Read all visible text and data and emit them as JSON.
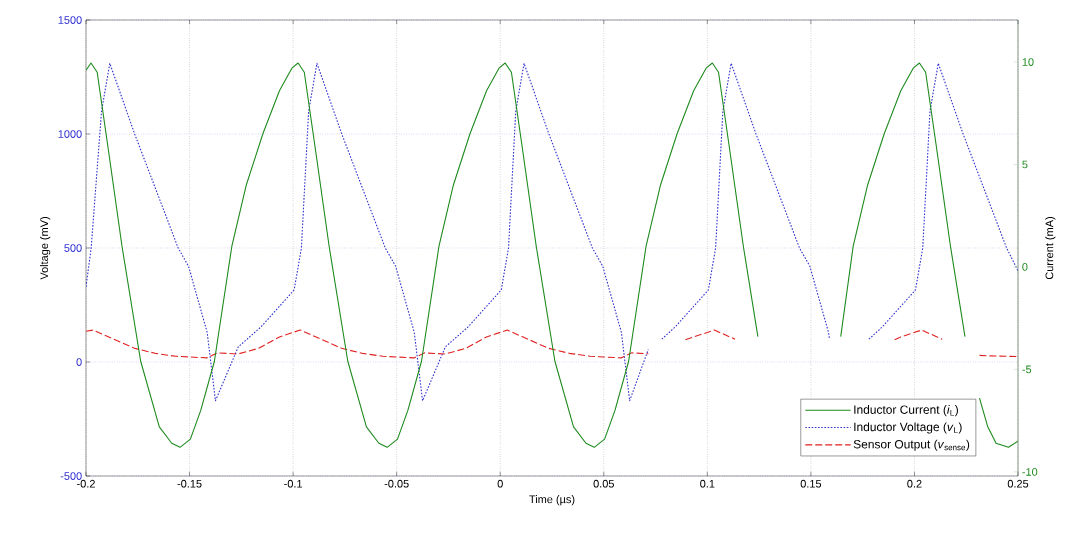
{
  "chart_data": {
    "type": "line",
    "xlabel": "Time (µs)",
    "ylabel": "Voltage (mV)",
    "y2label": "Current (mA)",
    "xlim": [
      -0.2,
      0.25
    ],
    "xticks": [
      -0.2,
      -0.15,
      -0.1,
      -0.05,
      0,
      0.05,
      0.1,
      0.15,
      0.2,
      0.25
    ],
    "ylim": [
      -500,
      1500
    ],
    "yticks": [
      -500,
      0,
      500,
      1000,
      1500
    ],
    "y2lim": [
      -10.2,
      12.05
    ],
    "y2ticks": [
      -10,
      -5,
      0,
      5,
      10
    ],
    "grid": true,
    "legend": "bottom right",
    "marker": "none",
    "series": [
      {
        "name": "Inductor Current (*i*$_{L}$)",
        "color": "#1e8a1e",
        "axis": "y2",
        "line_style": "solid",
        "x": [
          -0.2,
          -0.1976,
          -0.1946,
          -0.1896,
          -0.1826,
          -0.1736,
          -0.1646,
          -0.1586,
          -0.1546,
          -0.1496,
          -0.1446,
          -0.138,
          -0.1296,
          -0.1226,
          -0.1146,
          -0.1066,
          -0.1006,
          -0.0976,
          -0.0946,
          -0.0896,
          -0.0826,
          -0.0736,
          -0.0646,
          -0.0586,
          -0.0546,
          -0.0496,
          -0.0446,
          -0.038,
          -0.0296,
          -0.0226,
          -0.0146,
          -0.0066,
          -0.0006,
          0.0024,
          0.0054,
          0.0104,
          0.0174,
          0.0264,
          0.0354,
          0.0414,
          0.0454,
          0.0504,
          0.0554,
          0.062,
          0.0704,
          0.0774,
          0.0854,
          0.0934,
          0.0994,
          0.1024,
          0.1054,
          0.1104,
          0.1174,
          0.1244,
          0.1264,
          0.1454,
          0.162,
          0.1644,
          0.1704,
          0.1774,
          0.1854,
          0.1934,
          0.1994,
          0.2024,
          0.2054,
          0.2104,
          0.2174,
          0.2244,
          0.2264,
          0.2314,
          0.2354,
          0.2394,
          0.2454,
          0.25
        ],
        "values": [
          9.6,
          9.95,
          9.5,
          6.0,
          1.0,
          -4.6,
          -7.8,
          -8.6,
          -8.8,
          -8.4,
          -7.0,
          -4.6,
          1.0,
          4.0,
          6.5,
          8.6,
          9.7,
          9.95,
          9.5,
          6.0,
          1.0,
          -4.6,
          -7.8,
          -8.6,
          -8.8,
          -8.4,
          -7.0,
          -4.6,
          1.0,
          4.0,
          6.5,
          8.6,
          9.7,
          9.95,
          9.5,
          6.0,
          1.0,
          -4.6,
          -7.8,
          -8.6,
          -8.8,
          -8.4,
          -7.0,
          -4.6,
          1.0,
          4.0,
          6.5,
          8.6,
          9.7,
          9.95,
          9.5,
          6.0,
          1.0,
          -3.4,
          null,
          null,
          null,
          -3.4,
          1.0,
          4.0,
          6.5,
          8.6,
          9.7,
          9.95,
          9.5,
          6.0,
          1.0,
          -3.4,
          null,
          -6.4,
          -7.8,
          -8.6,
          -8.8,
          -8.5
        ]
      },
      {
        "name": "Inductor Voltage (*v*$_{L}$)",
        "color": "#3030d0",
        "line_style": "dotted",
        "x": [
          -0.2,
          -0.1975,
          -0.1925,
          -0.1885,
          -0.1765,
          -0.1555,
          -0.1505,
          -0.1415,
          -0.1375,
          -0.1265,
          -0.1155,
          -0.0995,
          -0.096,
          -0.0925,
          -0.0885,
          -0.0765,
          -0.0555,
          -0.0505,
          -0.0415,
          -0.0375,
          -0.0265,
          -0.0155,
          0.0005,
          0.004,
          0.0075,
          0.0115,
          0.0235,
          0.0445,
          0.0495,
          0.0585,
          0.0625,
          0.0715,
          0.0745,
          0.078,
          0.0845,
          0.1005,
          0.104,
          0.1075,
          0.1115,
          0.1235,
          0.1445,
          0.1495,
          0.1585,
          0.159,
          0.162,
          0.178,
          0.1845,
          0.2005,
          0.204,
          0.2075,
          0.2115,
          0.2235,
          0.2445,
          0.25
        ],
        "values": [
          330,
          500,
          1100,
          1310,
          1000,
          500,
          420,
          130,
          -170,
          66,
          154,
          316,
          500,
          1100,
          1310,
          1000,
          500,
          420,
          130,
          -170,
          66,
          154,
          316,
          500,
          1100,
          1310,
          1000,
          500,
          420,
          130,
          -170,
          55,
          null,
          100,
          154,
          316,
          500,
          1100,
          1310,
          1000,
          500,
          420,
          130,
          100,
          null,
          100,
          154,
          316,
          500,
          1100,
          1310,
          1000,
          500,
          400
        ]
      },
      {
        "name": "Sensor Output (*v*$_{sense}$)",
        "color": "#e02020",
        "line_style": "dashed",
        "x": [
          -0.2,
          -0.1966,
          -0.1866,
          -0.1766,
          -0.1666,
          -0.1566,
          -0.1416,
          -0.1366,
          -0.1266,
          -0.1166,
          -0.1066,
          -0.0966,
          -0.0866,
          -0.0766,
          -0.0666,
          -0.0566,
          -0.0416,
          -0.0366,
          -0.0266,
          -0.0166,
          -0.0066,
          0.0034,
          0.0134,
          0.0234,
          0.0334,
          0.0434,
          0.0584,
          0.0634,
          0.0715,
          0.0745,
          0.0894,
          0.0934,
          0.1034,
          0.1134,
          0.1184,
          0.1904,
          0.1934,
          0.2034,
          0.2134,
          0.2184,
          0.2314,
          0.2354,
          0.2394,
          0.2444,
          0.25
        ],
        "values": [
          135,
          140,
          100,
          60,
          38,
          25,
          18,
          40,
          35,
          60,
          110,
          140,
          100,
          60,
          38,
          25,
          18,
          40,
          35,
          60,
          110,
          140,
          100,
          60,
          38,
          25,
          18,
          40,
          36,
          null,
          98,
          110,
          140,
          100,
          null,
          98,
          110,
          140,
          100,
          null,
          29,
          27,
          26,
          25,
          24
        ]
      }
    ]
  }
}
